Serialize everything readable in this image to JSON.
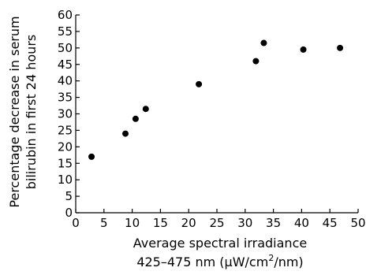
{
  "chart_data": {
    "type": "scatter",
    "title": "",
    "xlabel_line1": "Average spectral irradiance",
    "xlabel_line2_prefix": "425–475 nm (μW/cm",
    "xlabel_line2_sup": "2",
    "xlabel_line2_suffix": "/nm)",
    "ylabel_line1": "Percentage decrease in serum",
    "ylabel_line2": "bilirubin in first 24 hours",
    "xlim": [
      0,
      50
    ],
    "ylim": [
      0,
      60
    ],
    "xticks": [
      0,
      5,
      10,
      15,
      20,
      25,
      30,
      35,
      40,
      45,
      50
    ],
    "yticks": [
      0,
      5,
      10,
      15,
      20,
      25,
      30,
      35,
      40,
      45,
      50,
      55,
      60
    ],
    "grid": false,
    "series": [
      {
        "points": [
          {
            "x": 2.8,
            "y": 17
          },
          {
            "x": 8.8,
            "y": 24
          },
          {
            "x": 10.6,
            "y": 28.5
          },
          {
            "x": 12.4,
            "y": 31.5
          },
          {
            "x": 21.8,
            "y": 39
          },
          {
            "x": 31.9,
            "y": 46
          },
          {
            "x": 33.3,
            "y": 51.5
          },
          {
            "x": 40.3,
            "y": 49.5
          },
          {
            "x": 46.8,
            "y": 50
          }
        ]
      }
    ],
    "marker_color": "#000000"
  }
}
